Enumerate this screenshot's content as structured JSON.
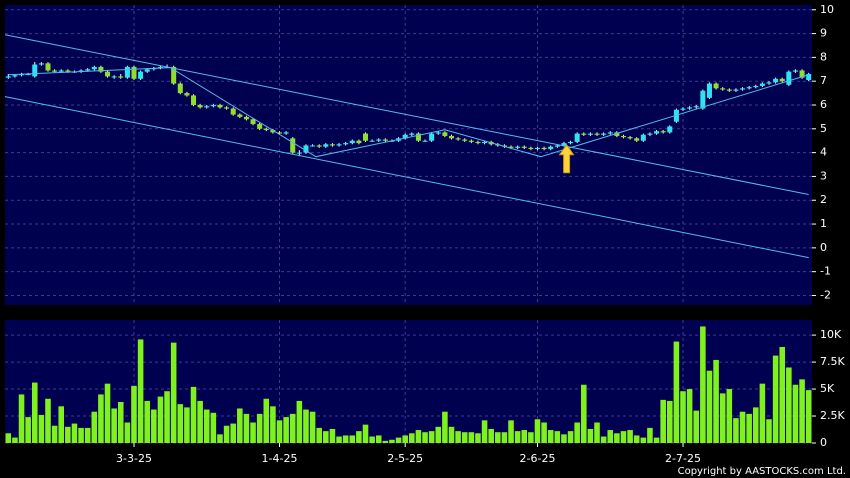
{
  "chart_data": [
    {
      "type": "candlestick",
      "up_color": "#2ee4f2",
      "down_color": "#8ee02a",
      "grid": true,
      "xlim": [
        -0.5,
        121.5
      ],
      "ylim": [
        -2.4,
        10.2
      ],
      "yticks": [
        10,
        9,
        8,
        7,
        6,
        5,
        4,
        3,
        2,
        1,
        0,
        -1,
        -2
      ],
      "ohlc": [
        [
          7.15,
          7.3,
          7.1,
          7.2
        ],
        [
          7.2,
          7.3,
          7.15,
          7.25
        ],
        [
          7.25,
          7.35,
          7.2,
          7.3
        ],
        [
          7.3,
          7.35,
          7.25,
          7.3
        ],
        [
          7.2,
          7.8,
          7.15,
          7.7
        ],
        [
          7.7,
          7.8,
          7.65,
          7.75
        ],
        [
          7.75,
          7.8,
          7.4,
          7.45
        ],
        [
          7.45,
          7.5,
          7.35,
          7.4
        ],
        [
          7.4,
          7.5,
          7.35,
          7.45
        ],
        [
          7.45,
          7.5,
          7.35,
          7.4
        ],
        [
          7.4,
          7.45,
          7.35,
          7.4
        ],
        [
          7.4,
          7.5,
          7.35,
          7.45
        ],
        [
          7.45,
          7.55,
          7.4,
          7.5
        ],
        [
          7.5,
          7.65,
          7.45,
          7.6
        ],
        [
          7.6,
          7.65,
          7.35,
          7.4
        ],
        [
          7.4,
          7.45,
          7.15,
          7.2
        ],
        [
          7.2,
          7.25,
          7.1,
          7.2
        ],
        [
          7.2,
          7.3,
          7.1,
          7.15
        ],
        [
          7.15,
          7.65,
          7.1,
          7.6
        ],
        [
          7.6,
          7.65,
          7.05,
          7.1
        ],
        [
          7.1,
          7.45,
          7.05,
          7.4
        ],
        [
          7.4,
          7.55,
          7.35,
          7.5
        ],
        [
          7.5,
          7.6,
          7.45,
          7.55
        ],
        [
          7.55,
          7.65,
          7.5,
          7.6
        ],
        [
          7.6,
          7.7,
          7.55,
          7.6
        ],
        [
          7.6,
          7.65,
          6.85,
          6.9
        ],
        [
          6.9,
          6.95,
          6.45,
          6.5
        ],
        [
          6.5,
          6.55,
          6.35,
          6.4
        ],
        [
          6.4,
          6.45,
          5.95,
          6.0
        ],
        [
          6.0,
          6.05,
          5.85,
          5.9
        ],
        [
          5.9,
          6.0,
          5.85,
          5.95
        ],
        [
          5.95,
          6.05,
          5.9,
          6.0
        ],
        [
          6.0,
          6.05,
          5.85,
          5.9
        ],
        [
          5.9,
          5.95,
          5.8,
          5.85
        ],
        [
          5.85,
          5.9,
          5.55,
          5.6
        ],
        [
          5.6,
          5.65,
          5.45,
          5.5
        ],
        [
          5.5,
          5.55,
          5.35,
          5.4
        ],
        [
          5.4,
          5.45,
          5.15,
          5.2
        ],
        [
          5.2,
          5.25,
          4.95,
          5.0
        ],
        [
          5.0,
          5.05,
          4.9,
          4.95
        ],
        [
          4.95,
          5.0,
          4.8,
          4.85
        ],
        [
          4.85,
          4.9,
          4.75,
          4.8
        ],
        [
          4.8,
          4.9,
          4.75,
          4.85
        ],
        [
          4.6,
          4.65,
          3.95,
          4.0
        ],
        [
          4.0,
          4.1,
          3.85,
          4.0
        ],
        [
          4.0,
          4.35,
          3.95,
          4.3
        ],
        [
          4.3,
          4.35,
          4.25,
          4.3
        ],
        [
          4.3,
          4.35,
          4.2,
          4.25
        ],
        [
          4.25,
          4.4,
          4.2,
          4.35
        ],
        [
          4.35,
          4.4,
          4.25,
          4.3
        ],
        [
          4.3,
          4.4,
          4.25,
          4.35
        ],
        [
          4.35,
          4.45,
          4.3,
          4.4
        ],
        [
          4.4,
          4.55,
          4.35,
          4.5
        ],
        [
          4.5,
          4.55,
          4.35,
          4.4
        ],
        [
          4.8,
          4.85,
          4.45,
          4.5
        ],
        [
          4.5,
          4.55,
          4.45,
          4.5
        ],
        [
          4.5,
          4.6,
          4.45,
          4.55
        ],
        [
          4.55,
          4.6,
          4.45,
          4.5
        ],
        [
          4.5,
          4.55,
          4.45,
          4.5
        ],
        [
          4.5,
          4.65,
          4.45,
          4.6
        ],
        [
          4.6,
          4.8,
          4.55,
          4.75
        ],
        [
          4.75,
          4.85,
          4.7,
          4.8
        ],
        [
          4.8,
          4.85,
          4.45,
          4.5
        ],
        [
          4.5,
          4.55,
          4.45,
          4.5
        ],
        [
          4.5,
          4.85,
          4.45,
          4.8
        ],
        [
          4.8,
          4.9,
          4.75,
          4.85
        ],
        [
          4.85,
          4.9,
          4.65,
          4.7
        ],
        [
          4.7,
          4.75,
          4.55,
          4.6
        ],
        [
          4.6,
          4.65,
          4.5,
          4.55
        ],
        [
          4.55,
          4.6,
          4.45,
          4.5
        ],
        [
          4.5,
          4.55,
          4.4,
          4.45
        ],
        [
          4.45,
          4.5,
          4.35,
          4.4
        ],
        [
          4.4,
          4.5,
          4.35,
          4.45
        ],
        [
          4.45,
          4.5,
          4.3,
          4.35
        ],
        [
          4.35,
          4.4,
          4.25,
          4.3
        ],
        [
          4.3,
          4.35,
          4.2,
          4.25
        ],
        [
          4.25,
          4.3,
          4.15,
          4.2
        ],
        [
          4.2,
          4.3,
          4.15,
          4.25
        ],
        [
          4.25,
          4.3,
          4.15,
          4.2
        ],
        [
          4.2,
          4.25,
          4.1,
          4.15
        ],
        [
          4.15,
          4.25,
          4.1,
          4.2
        ],
        [
          4.2,
          4.25,
          4.1,
          4.15
        ],
        [
          4.15,
          4.3,
          4.1,
          4.25
        ],
        [
          4.25,
          4.35,
          4.2,
          4.3
        ],
        [
          4.3,
          4.45,
          4.25,
          4.4
        ],
        [
          4.4,
          4.5,
          4.35,
          4.45
        ],
        [
          4.45,
          4.85,
          4.4,
          4.8
        ],
        [
          4.8,
          4.85,
          4.7,
          4.75
        ],
        [
          4.75,
          4.85,
          4.7,
          4.8
        ],
        [
          4.8,
          4.85,
          4.7,
          4.75
        ],
        [
          4.75,
          4.85,
          4.7,
          4.8
        ],
        [
          4.8,
          4.9,
          4.75,
          4.85
        ],
        [
          4.85,
          4.9,
          4.65,
          4.7
        ],
        [
          4.7,
          4.75,
          4.6,
          4.65
        ],
        [
          4.65,
          4.7,
          4.55,
          4.6
        ],
        [
          4.6,
          4.65,
          4.45,
          4.5
        ],
        [
          4.5,
          4.8,
          4.45,
          4.75
        ],
        [
          4.75,
          4.85,
          4.7,
          4.8
        ],
        [
          4.8,
          4.95,
          4.75,
          4.9
        ],
        [
          4.9,
          4.95,
          4.8,
          4.85
        ],
        [
          4.85,
          5.15,
          4.8,
          5.1
        ],
        [
          5.3,
          5.85,
          5.25,
          5.8
        ],
        [
          5.8,
          5.9,
          5.75,
          5.85
        ],
        [
          5.85,
          5.95,
          5.8,
          5.9
        ],
        [
          5.9,
          6.0,
          5.85,
          5.95
        ],
        [
          5.85,
          6.65,
          5.8,
          6.6
        ],
        [
          6.3,
          6.95,
          6.25,
          6.9
        ],
        [
          6.9,
          6.95,
          6.65,
          6.7
        ],
        [
          6.7,
          6.75,
          6.6,
          6.65
        ],
        [
          6.65,
          6.7,
          6.55,
          6.6
        ],
        [
          6.6,
          6.7,
          6.55,
          6.65
        ],
        [
          6.65,
          6.75,
          6.6,
          6.7
        ],
        [
          6.7,
          6.8,
          6.65,
          6.75
        ],
        [
          6.75,
          6.85,
          6.7,
          6.8
        ],
        [
          6.8,
          6.95,
          6.75,
          6.9
        ],
        [
          6.9,
          7.0,
          6.85,
          6.95
        ],
        [
          6.95,
          7.15,
          6.9,
          7.1
        ],
        [
          7.1,
          7.15,
          6.95,
          7.0
        ],
        [
          6.85,
          7.45,
          6.8,
          7.4
        ],
        [
          7.4,
          7.5,
          7.35,
          7.45
        ],
        [
          7.45,
          7.5,
          7.1,
          7.15
        ],
        [
          7.05,
          7.35,
          7.0,
          7.3
        ]
      ],
      "line_color": "#55bbee",
      "lines": [
        {
          "x": [
            -0.5,
            121
          ],
          "y": [
            8.95,
            2.24
          ]
        },
        {
          "x": [
            -0.5,
            121
          ],
          "y": [
            6.35,
            -0.41
          ]
        },
        {
          "x": [
            0,
            24.5,
            46.5,
            66,
            80.5,
            121
          ],
          "y": [
            7.27,
            7.57,
            3.83,
            4.96,
            3.83,
            7.27
          ]
        }
      ],
      "arrow": {
        "x": 84.4,
        "y": 4.33,
        "color": "#ffd23c"
      }
    },
    {
      "type": "bar",
      "color": "#7ff21e",
      "grid": true,
      "xlim": [
        -0.5,
        121.5
      ],
      "ylim": [
        0,
        11400
      ],
      "yticks": [
        0,
        {
          "value": 2500,
          "label": "2.5K"
        },
        {
          "value": 5000,
          "label": "5K"
        },
        {
          "value": 7500,
          "label": "7.5K"
        },
        {
          "value": 10000,
          "label": "10K"
        }
      ],
      "xticks": [
        {
          "value": 19,
          "label": "3-3-25"
        },
        {
          "value": 41,
          "label": "1-4-25"
        },
        {
          "value": 60,
          "label": "2-5-25"
        },
        {
          "value": 80,
          "label": "2-6-25"
        },
        {
          "value": 102,
          "label": "2-7-25"
        }
      ],
      "values": [
        900,
        500,
        4500,
        2400,
        5600,
        2600,
        4100,
        1600,
        3400,
        1500,
        1800,
        1400,
        1400,
        2900,
        4500,
        5500,
        3200,
        3800,
        1900,
        5300,
        9600,
        3900,
        3100,
        4300,
        4800,
        9300,
        3600,
        3300,
        5200,
        3900,
        3100,
        2800,
        800,
        1600,
        1800,
        3200,
        2700,
        1900,
        2700,
        4100,
        3400,
        2100,
        2400,
        2700,
        3900,
        3100,
        2900,
        1400,
        1100,
        1300,
        600,
        700,
        700,
        1100,
        1700,
        600,
        700,
        200,
        300,
        500,
        700,
        900,
        1200,
        1000,
        1100,
        1500,
        2900,
        1500,
        1100,
        1000,
        1000,
        900,
        2100,
        1300,
        1000,
        1000,
        2100,
        1100,
        1200,
        1000,
        2200,
        1900,
        1200,
        1100,
        800,
        1100,
        1900,
        5400,
        1300,
        1900,
        600,
        1200,
        900,
        1100,
        1200,
        700,
        500,
        1400,
        500,
        4000,
        3900,
        9400,
        4800,
        5000,
        3000,
        10800,
        6700,
        7700,
        4600,
        5000,
        2300,
        2900,
        2700,
        3300,
        5500,
        2200,
        8100,
        8900,
        7000,
        5400,
        5900,
        4900
      ],
      "credit": "Copyright by AASTOCKS.com Ltd."
    }
  ]
}
